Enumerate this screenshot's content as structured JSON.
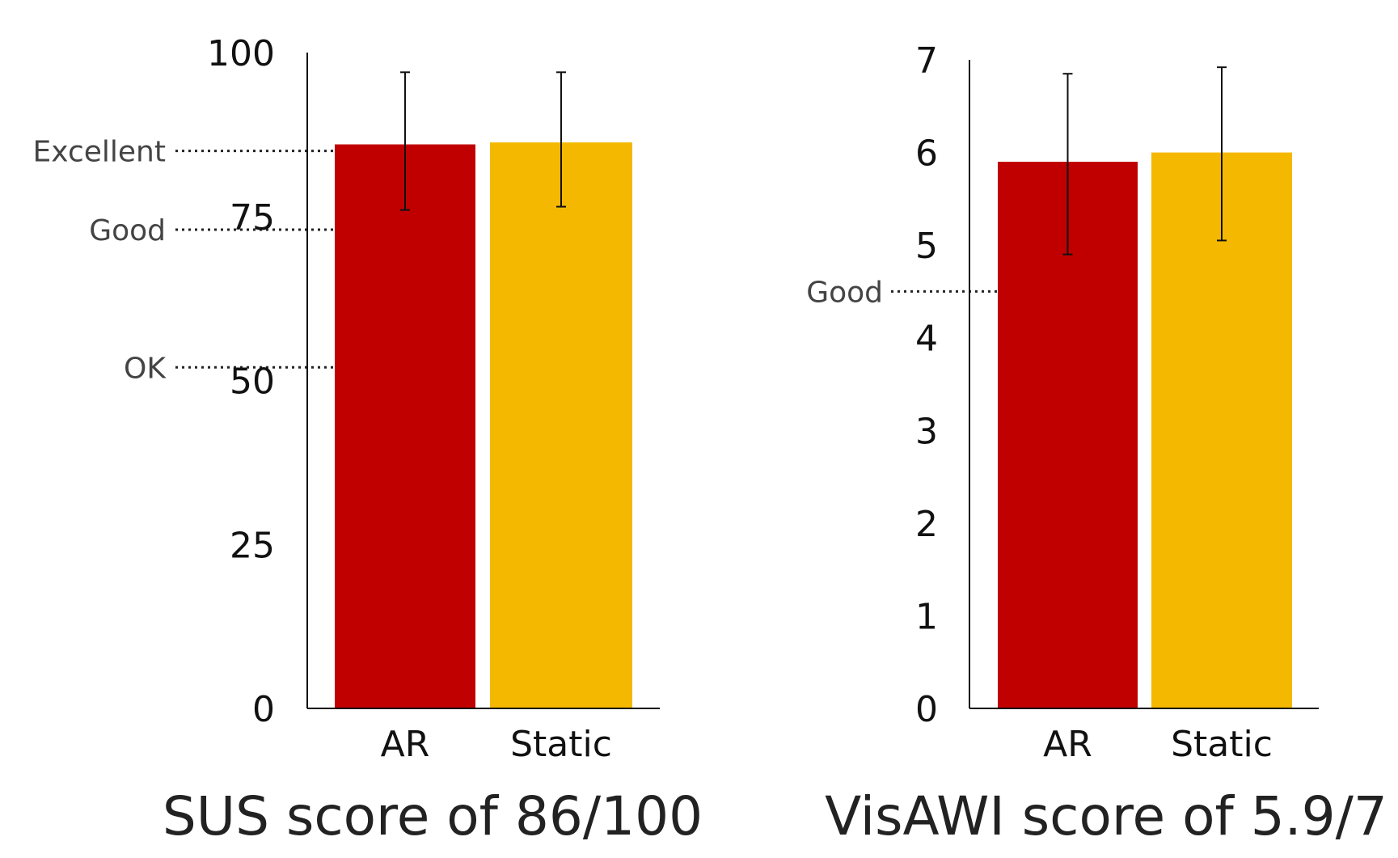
{
  "chart_data": [
    {
      "type": "bar",
      "title": "SUS score of 86/100",
      "categories": [
        "AR",
        "Static"
      ],
      "values": [
        86,
        86.3
      ],
      "error_bars": [
        {
          "low": 76,
          "high": 97
        },
        {
          "low": 76.5,
          "high": 97
        }
      ],
      "colors": [
        "#c00000",
        "#f5b800"
      ],
      "ylim": [
        0,
        100
      ],
      "yticks": [
        "0",
        "25",
        "50",
        "75",
        "100"
      ],
      "reference_lines": [
        {
          "label": "Excellent",
          "value": 85
        },
        {
          "label": "Good",
          "value": 73
        },
        {
          "label": "OK",
          "value": 52
        }
      ]
    },
    {
      "type": "bar",
      "title": "VisAWI score of 5.9/7",
      "categories": [
        "AR",
        "Static"
      ],
      "values": [
        5.9,
        6.0
      ],
      "error_bars": [
        {
          "low": 4.9,
          "high": 6.85
        },
        {
          "low": 5.05,
          "high": 6.92
        }
      ],
      "colors": [
        "#c00000",
        "#f5b800"
      ],
      "ylim": [
        0,
        7
      ],
      "yticks": [
        "0",
        "1",
        "2",
        "3",
        "4",
        "5",
        "6",
        "7"
      ],
      "reference_lines": [
        {
          "label": "Good",
          "value": 4.5
        }
      ]
    }
  ]
}
